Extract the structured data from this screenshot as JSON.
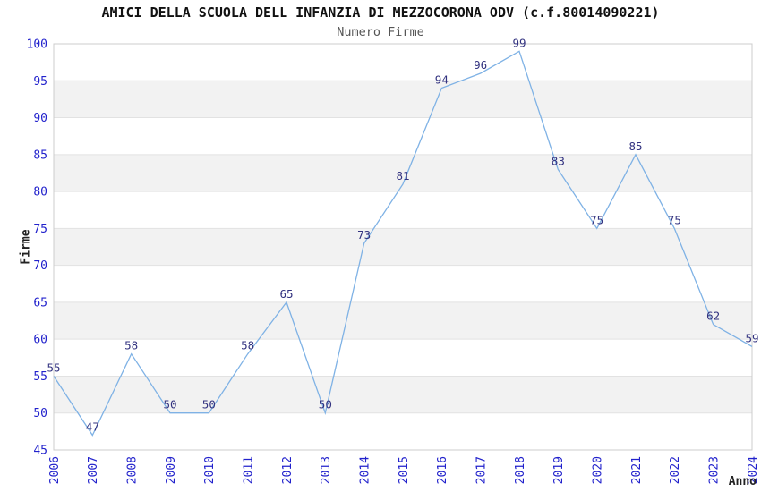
{
  "chart_data": {
    "type": "line",
    "title": "AMICI DELLA SCUOLA DELL INFANZIA DI MEZZOCORONA ODV (c.f.80014090221)",
    "subtitle": "Numero Firme",
    "xlabel": "Anno",
    "ylabel": "Firme",
    "categories": [
      "2006",
      "2007",
      "2008",
      "2009",
      "2010",
      "2011",
      "2012",
      "2013",
      "2014",
      "2015",
      "2016",
      "2017",
      "2018",
      "2019",
      "2020",
      "2021",
      "2022",
      "2023",
      "2024"
    ],
    "values": [
      55,
      47,
      58,
      50,
      50,
      58,
      65,
      50,
      73,
      81,
      94,
      96,
      99,
      83,
      75,
      85,
      75,
      62,
      59
    ],
    "ylim": [
      45,
      100
    ],
    "ytick_step": 5,
    "grid": true,
    "band_fill": "alternating",
    "legend_position": "none",
    "colors": {
      "line": "#7FB2E5",
      "tick_label": "#2222CC",
      "point_label": "#333380",
      "band": "#F2F2F2",
      "gridline": "#E2E2E2",
      "border": "#CCCCCC",
      "title": "#111111",
      "subtitle": "#555555",
      "axis_title": "#222222",
      "background": "#FFFFFF"
    }
  }
}
